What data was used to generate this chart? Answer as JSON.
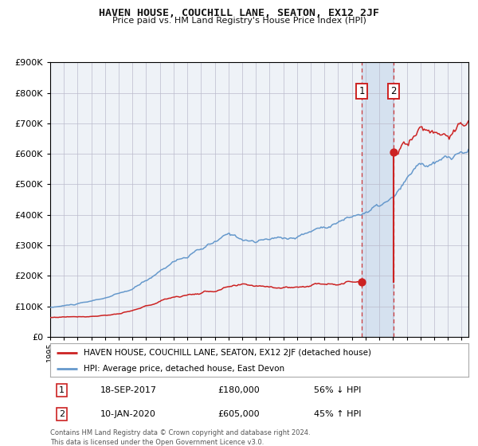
{
  "title": "HAVEN HOUSE, COUCHILL LANE, SEATON, EX12 2JF",
  "subtitle": "Price paid vs. HM Land Registry's House Price Index (HPI)",
  "legend_line1": "HAVEN HOUSE, COUCHILL LANE, SEATON, EX12 2JF (detached house)",
  "legend_line2": "HPI: Average price, detached house, East Devon",
  "transaction1_date": "18-SEP-2017",
  "transaction1_price": 180000,
  "transaction1_note": "56% ↓ HPI",
  "transaction2_date": "10-JAN-2020",
  "transaction2_price": 605000,
  "transaction2_note": "45% ↑ HPI",
  "footer": "Contains HM Land Registry data © Crown copyright and database right 2024.\nThis data is licensed under the Open Government Licence v3.0.",
  "hpi_color": "#6699cc",
  "price_color": "#cc2222",
  "background_color": "#ffffff",
  "plot_bg_color": "#eef2f7",
  "grid_color": "#bbbbcc",
  "transaction1_x": 2017.72,
  "transaction2_x": 2020.03,
  "ylim_max": 900000,
  "xlim_min": 1995.0,
  "xlim_max": 2025.5
}
